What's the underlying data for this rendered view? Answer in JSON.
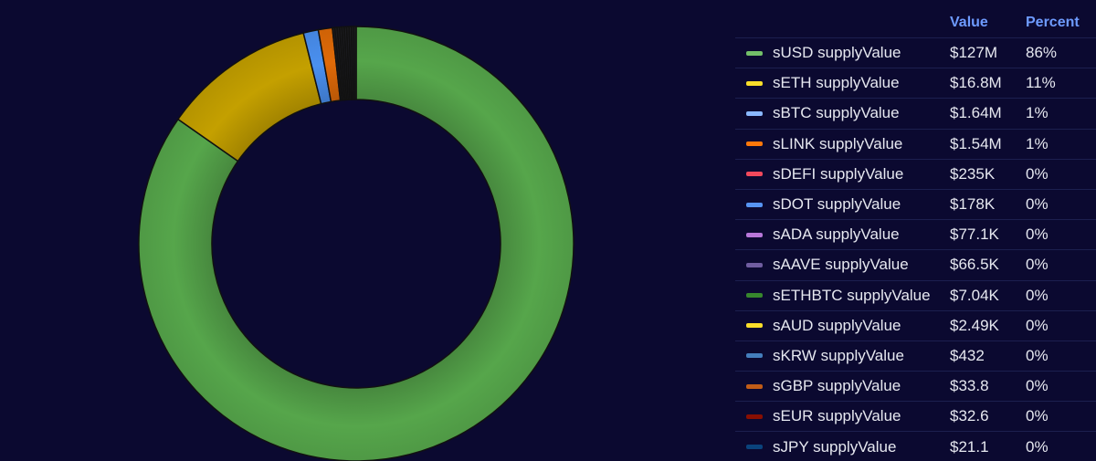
{
  "chart_data": {
    "type": "pie",
    "donut": true,
    "legend_position": "right",
    "columns": {
      "value_header": "Value",
      "percent_header": "Percent"
    },
    "series": [
      {
        "name": "sUSD supplyValue",
        "value": 127000000,
        "value_label": "$127M",
        "percent_label": "86%",
        "color": "#73bf69"
      },
      {
        "name": "sETH supplyValue",
        "value": 16800000,
        "value_label": "$16.8M",
        "percent_label": "11%",
        "color": "#fade2a"
      },
      {
        "name": "sBTC supplyValue",
        "value": 1640000,
        "value_label": "$1.64M",
        "percent_label": "1%",
        "color": "#8ab8ff"
      },
      {
        "name": "sLINK supplyValue",
        "value": 1540000,
        "value_label": "$1.54M",
        "percent_label": "1%",
        "color": "#ff780a"
      },
      {
        "name": "sDEFI supplyValue",
        "value": 235000,
        "value_label": "$235K",
        "percent_label": "0%",
        "color": "#f2495c"
      },
      {
        "name": "sDOT supplyValue",
        "value": 178000,
        "value_label": "$178K",
        "percent_label": "0%",
        "color": "#5794f2"
      },
      {
        "name": "sADA supplyValue",
        "value": 77100,
        "value_label": "$77.1K",
        "percent_label": "0%",
        "color": "#b877d9"
      },
      {
        "name": "sAAVE supplyValue",
        "value": 66500,
        "value_label": "$66.5K",
        "percent_label": "0%",
        "color": "#705da0"
      },
      {
        "name": "sETHBTC supplyValue",
        "value": 7040,
        "value_label": "$7.04K",
        "percent_label": "0%",
        "color": "#37872d"
      },
      {
        "name": "sAUD supplyValue",
        "value": 2490,
        "value_label": "$2.49K",
        "percent_label": "0%",
        "color": "#fade2a"
      },
      {
        "name": "sKRW supplyValue",
        "value": 432,
        "value_label": "$432",
        "percent_label": "0%",
        "color": "#447ebc"
      },
      {
        "name": "sGBP supplyValue",
        "value": 33.8,
        "value_label": "$33.8",
        "percent_label": "0%",
        "color": "#c15c17"
      },
      {
        "name": "sEUR supplyValue",
        "value": 32.6,
        "value_label": "$32.6",
        "percent_label": "0%",
        "color": "#890f02"
      },
      {
        "name": "sJPY supplyValue",
        "value": 21.1,
        "value_label": "$21.1",
        "percent_label": "0%",
        "color": "#0a437c"
      }
    ],
    "display_colors": {
      "sUSD supplyValue": "#56a64b",
      "sETH supplyValue": "#c4a000",
      "sBTC supplyValue": "#4a90f0",
      "sLINK supplyValue": "#e06a08",
      "small_slices": "#1c1c20"
    }
  }
}
